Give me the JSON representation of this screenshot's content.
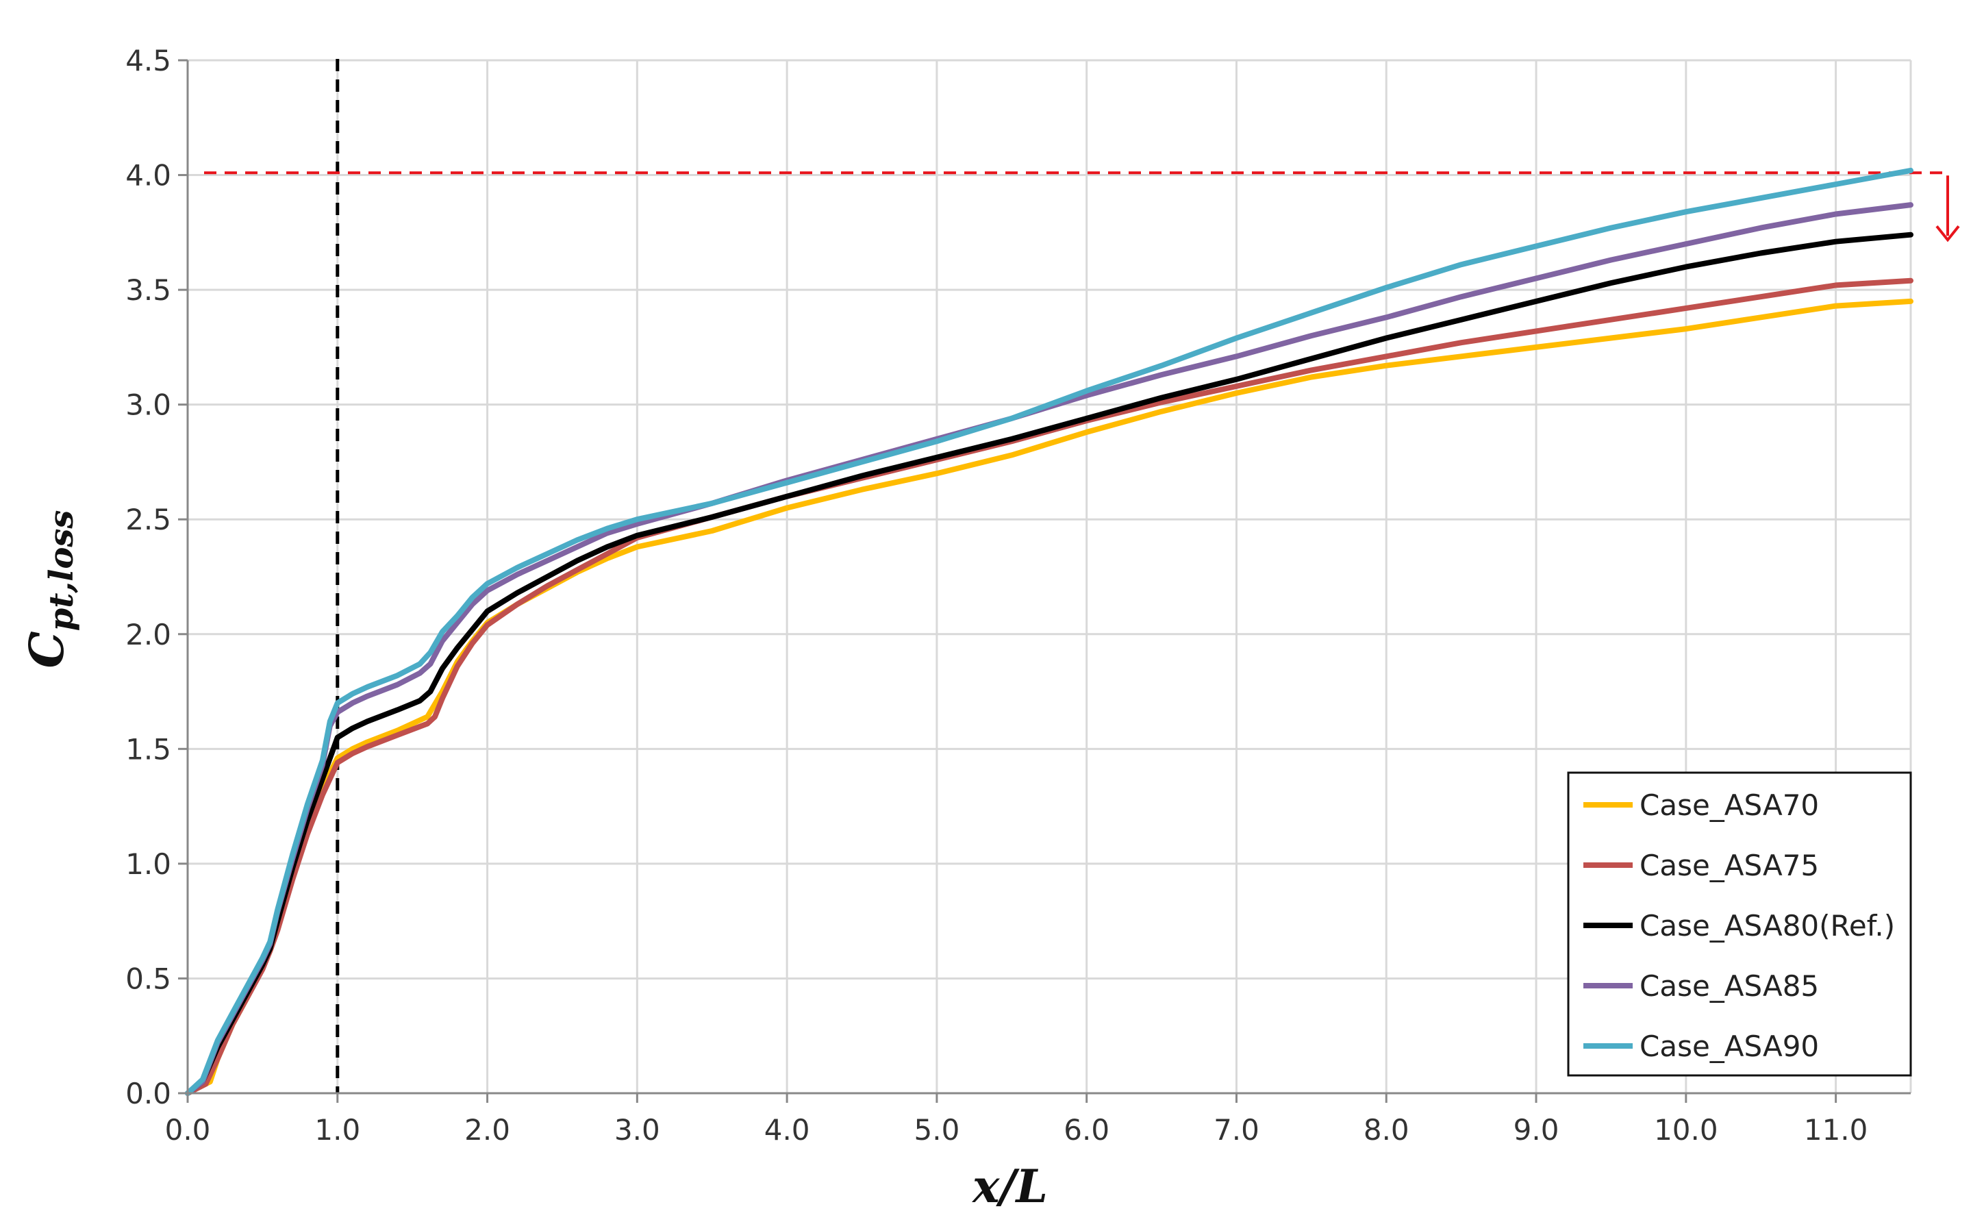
{
  "chart_data": {
    "type": "line",
    "xlabel": "x/L",
    "ylabel": "C",
    "ylabel_subscript": "pt,loss",
    "xlim": [
      0,
      11.5
    ],
    "ylim": [
      0,
      4.5
    ],
    "x_ticks": [
      "0.0",
      "1.0",
      "2.0",
      "3.0",
      "4.0",
      "5.0",
      "6.0",
      "7.0",
      "8.0",
      "9.0",
      "10.0",
      "11.0"
    ],
    "y_ticks": [
      "0.0",
      "0.5",
      "1.0",
      "1.5",
      "2.0",
      "2.5",
      "3.0",
      "3.5",
      "4.0",
      "4.5"
    ],
    "grid": true,
    "legend_position": "bottom-right",
    "reference_lines": [
      {
        "orientation": "vertical",
        "value": 1.0,
        "style": "dashed",
        "color": "#000000"
      },
      {
        "orientation": "horizontal",
        "value": 4.01,
        "style": "dashed",
        "color": "#e8141c"
      }
    ],
    "annotation_arrow": {
      "direction": "down",
      "color": "#e8141c"
    },
    "series": [
      {
        "name": "Case_ASA70",
        "color": "#ffbb00",
        "points": [
          [
            0.0,
            0.0
          ],
          [
            0.15,
            0.05
          ],
          [
            0.2,
            0.15
          ],
          [
            0.3,
            0.3
          ],
          [
            0.4,
            0.42
          ],
          [
            0.5,
            0.55
          ],
          [
            0.55,
            0.62
          ],
          [
            0.6,
            0.72
          ],
          [
            0.7,
            0.97
          ],
          [
            0.8,
            1.17
          ],
          [
            0.9,
            1.33
          ],
          [
            1.0,
            1.46
          ],
          [
            1.1,
            1.5
          ],
          [
            1.2,
            1.53
          ],
          [
            1.4,
            1.58
          ],
          [
            1.6,
            1.64
          ],
          [
            1.7,
            1.75
          ],
          [
            1.8,
            1.88
          ],
          [
            1.9,
            1.97
          ],
          [
            2.0,
            2.05
          ],
          [
            2.2,
            2.13
          ],
          [
            2.4,
            2.2
          ],
          [
            2.6,
            2.27
          ],
          [
            2.8,
            2.33
          ],
          [
            3.0,
            2.38
          ],
          [
            3.5,
            2.45
          ],
          [
            4.0,
            2.55
          ],
          [
            4.5,
            2.63
          ],
          [
            5.0,
            2.7
          ],
          [
            5.5,
            2.78
          ],
          [
            6.0,
            2.88
          ],
          [
            6.5,
            2.97
          ],
          [
            7.0,
            3.05
          ],
          [
            7.5,
            3.12
          ],
          [
            8.0,
            3.17
          ],
          [
            8.5,
            3.21
          ],
          [
            9.0,
            3.25
          ],
          [
            9.5,
            3.29
          ],
          [
            10.0,
            3.33
          ],
          [
            10.5,
            3.38
          ],
          [
            11.0,
            3.43
          ],
          [
            11.5,
            3.45
          ]
        ]
      },
      {
        "name": "Case_ASA75",
        "color": "#c0504d",
        "points": [
          [
            0.0,
            0.0
          ],
          [
            0.12,
            0.04
          ],
          [
            0.2,
            0.15
          ],
          [
            0.3,
            0.3
          ],
          [
            0.4,
            0.42
          ],
          [
            0.5,
            0.54
          ],
          [
            0.55,
            0.62
          ],
          [
            0.6,
            0.71
          ],
          [
            0.7,
            0.93
          ],
          [
            0.8,
            1.13
          ],
          [
            0.9,
            1.3
          ],
          [
            1.0,
            1.44
          ],
          [
            1.1,
            1.48
          ],
          [
            1.2,
            1.51
          ],
          [
            1.4,
            1.56
          ],
          [
            1.6,
            1.61
          ],
          [
            1.65,
            1.64
          ],
          [
            1.7,
            1.72
          ],
          [
            1.8,
            1.86
          ],
          [
            1.9,
            1.96
          ],
          [
            2.0,
            2.04
          ],
          [
            2.2,
            2.13
          ],
          [
            2.4,
            2.21
          ],
          [
            2.6,
            2.28
          ],
          [
            2.8,
            2.35
          ],
          [
            3.0,
            2.42
          ],
          [
            3.5,
            2.51
          ],
          [
            4.0,
            2.6
          ],
          [
            4.5,
            2.68
          ],
          [
            5.0,
            2.76
          ],
          [
            5.5,
            2.84
          ],
          [
            6.0,
            2.93
          ],
          [
            6.5,
            3.01
          ],
          [
            7.0,
            3.08
          ],
          [
            7.5,
            3.15
          ],
          [
            8.0,
            3.21
          ],
          [
            8.5,
            3.27
          ],
          [
            9.0,
            3.32
          ],
          [
            9.5,
            3.37
          ],
          [
            10.0,
            3.42
          ],
          [
            10.5,
            3.47
          ],
          [
            11.0,
            3.52
          ],
          [
            11.5,
            3.54
          ]
        ]
      },
      {
        "name": "Case_ASA80(Ref.)",
        "color": "#000000",
        "points": [
          [
            0.0,
            0.0
          ],
          [
            0.1,
            0.05
          ],
          [
            0.2,
            0.2
          ],
          [
            0.3,
            0.32
          ],
          [
            0.4,
            0.44
          ],
          [
            0.5,
            0.56
          ],
          [
            0.55,
            0.63
          ],
          [
            0.6,
            0.75
          ],
          [
            0.7,
            0.98
          ],
          [
            0.8,
            1.19
          ],
          [
            0.9,
            1.37
          ],
          [
            1.0,
            1.55
          ],
          [
            1.1,
            1.59
          ],
          [
            1.2,
            1.62
          ],
          [
            1.4,
            1.67
          ],
          [
            1.55,
            1.71
          ],
          [
            1.62,
            1.75
          ],
          [
            1.7,
            1.85
          ],
          [
            1.8,
            1.94
          ],
          [
            1.9,
            2.02
          ],
          [
            2.0,
            2.1
          ],
          [
            2.2,
            2.18
          ],
          [
            2.4,
            2.25
          ],
          [
            2.6,
            2.32
          ],
          [
            2.8,
            2.38
          ],
          [
            3.0,
            2.43
          ],
          [
            3.5,
            2.51
          ],
          [
            4.0,
            2.6
          ],
          [
            4.5,
            2.69
          ],
          [
            5.0,
            2.77
          ],
          [
            5.5,
            2.85
          ],
          [
            6.0,
            2.94
          ],
          [
            6.5,
            3.03
          ],
          [
            7.0,
            3.11
          ],
          [
            7.5,
            3.2
          ],
          [
            8.0,
            3.29
          ],
          [
            8.5,
            3.37
          ],
          [
            9.0,
            3.45
          ],
          [
            9.5,
            3.53
          ],
          [
            10.0,
            3.6
          ],
          [
            10.5,
            3.66
          ],
          [
            11.0,
            3.71
          ],
          [
            11.5,
            3.74
          ]
        ]
      },
      {
        "name": "Case_ASA85",
        "color": "#8064a2",
        "points": [
          [
            0.0,
            0.0
          ],
          [
            0.1,
            0.05
          ],
          [
            0.2,
            0.22
          ],
          [
            0.3,
            0.34
          ],
          [
            0.4,
            0.46
          ],
          [
            0.5,
            0.58
          ],
          [
            0.55,
            0.65
          ],
          [
            0.6,
            0.79
          ],
          [
            0.7,
            1.02
          ],
          [
            0.8,
            1.24
          ],
          [
            0.9,
            1.43
          ],
          [
            0.95,
            1.6
          ],
          [
            1.0,
            1.66
          ],
          [
            1.1,
            1.7
          ],
          [
            1.2,
            1.73
          ],
          [
            1.4,
            1.78
          ],
          [
            1.55,
            1.83
          ],
          [
            1.62,
            1.87
          ],
          [
            1.7,
            1.97
          ],
          [
            1.8,
            2.05
          ],
          [
            1.9,
            2.13
          ],
          [
            2.0,
            2.19
          ],
          [
            2.2,
            2.26
          ],
          [
            2.4,
            2.32
          ],
          [
            2.6,
            2.38
          ],
          [
            2.8,
            2.44
          ],
          [
            3.0,
            2.48
          ],
          [
            3.5,
            2.57
          ],
          [
            4.0,
            2.67
          ],
          [
            4.5,
            2.76
          ],
          [
            5.0,
            2.85
          ],
          [
            5.5,
            2.94
          ],
          [
            6.0,
            3.04
          ],
          [
            6.5,
            3.13
          ],
          [
            7.0,
            3.21
          ],
          [
            7.5,
            3.3
          ],
          [
            8.0,
            3.38
          ],
          [
            8.5,
            3.47
          ],
          [
            9.0,
            3.55
          ],
          [
            9.5,
            3.63
          ],
          [
            10.0,
            3.7
          ],
          [
            10.5,
            3.77
          ],
          [
            11.0,
            3.83
          ],
          [
            11.5,
            3.87
          ]
        ]
      },
      {
        "name": "Case_ASA90",
        "color": "#4bacc6",
        "points": [
          [
            0.0,
            0.0
          ],
          [
            0.1,
            0.06
          ],
          [
            0.2,
            0.23
          ],
          [
            0.3,
            0.35
          ],
          [
            0.4,
            0.47
          ],
          [
            0.5,
            0.59
          ],
          [
            0.55,
            0.66
          ],
          [
            0.6,
            0.8
          ],
          [
            0.7,
            1.04
          ],
          [
            0.8,
            1.26
          ],
          [
            0.9,
            1.45
          ],
          [
            0.95,
            1.62
          ],
          [
            1.0,
            1.7
          ],
          [
            1.1,
            1.74
          ],
          [
            1.2,
            1.77
          ],
          [
            1.4,
            1.82
          ],
          [
            1.55,
            1.87
          ],
          [
            1.62,
            1.92
          ],
          [
            1.7,
            2.01
          ],
          [
            1.8,
            2.08
          ],
          [
            1.9,
            2.16
          ],
          [
            2.0,
            2.22
          ],
          [
            2.2,
            2.29
          ],
          [
            2.4,
            2.35
          ],
          [
            2.6,
            2.41
          ],
          [
            2.8,
            2.46
          ],
          [
            3.0,
            2.5
          ],
          [
            3.5,
            2.57
          ],
          [
            4.0,
            2.66
          ],
          [
            4.5,
            2.75
          ],
          [
            5.0,
            2.84
          ],
          [
            5.5,
            2.94
          ],
          [
            6.0,
            3.06
          ],
          [
            6.5,
            3.17
          ],
          [
            7.0,
            3.29
          ],
          [
            7.5,
            3.4
          ],
          [
            8.0,
            3.51
          ],
          [
            8.5,
            3.61
          ],
          [
            9.0,
            3.69
          ],
          [
            9.5,
            3.77
          ],
          [
            10.0,
            3.84
          ],
          [
            10.5,
            3.9
          ],
          [
            11.0,
            3.96
          ],
          [
            11.5,
            4.02
          ]
        ]
      }
    ]
  }
}
